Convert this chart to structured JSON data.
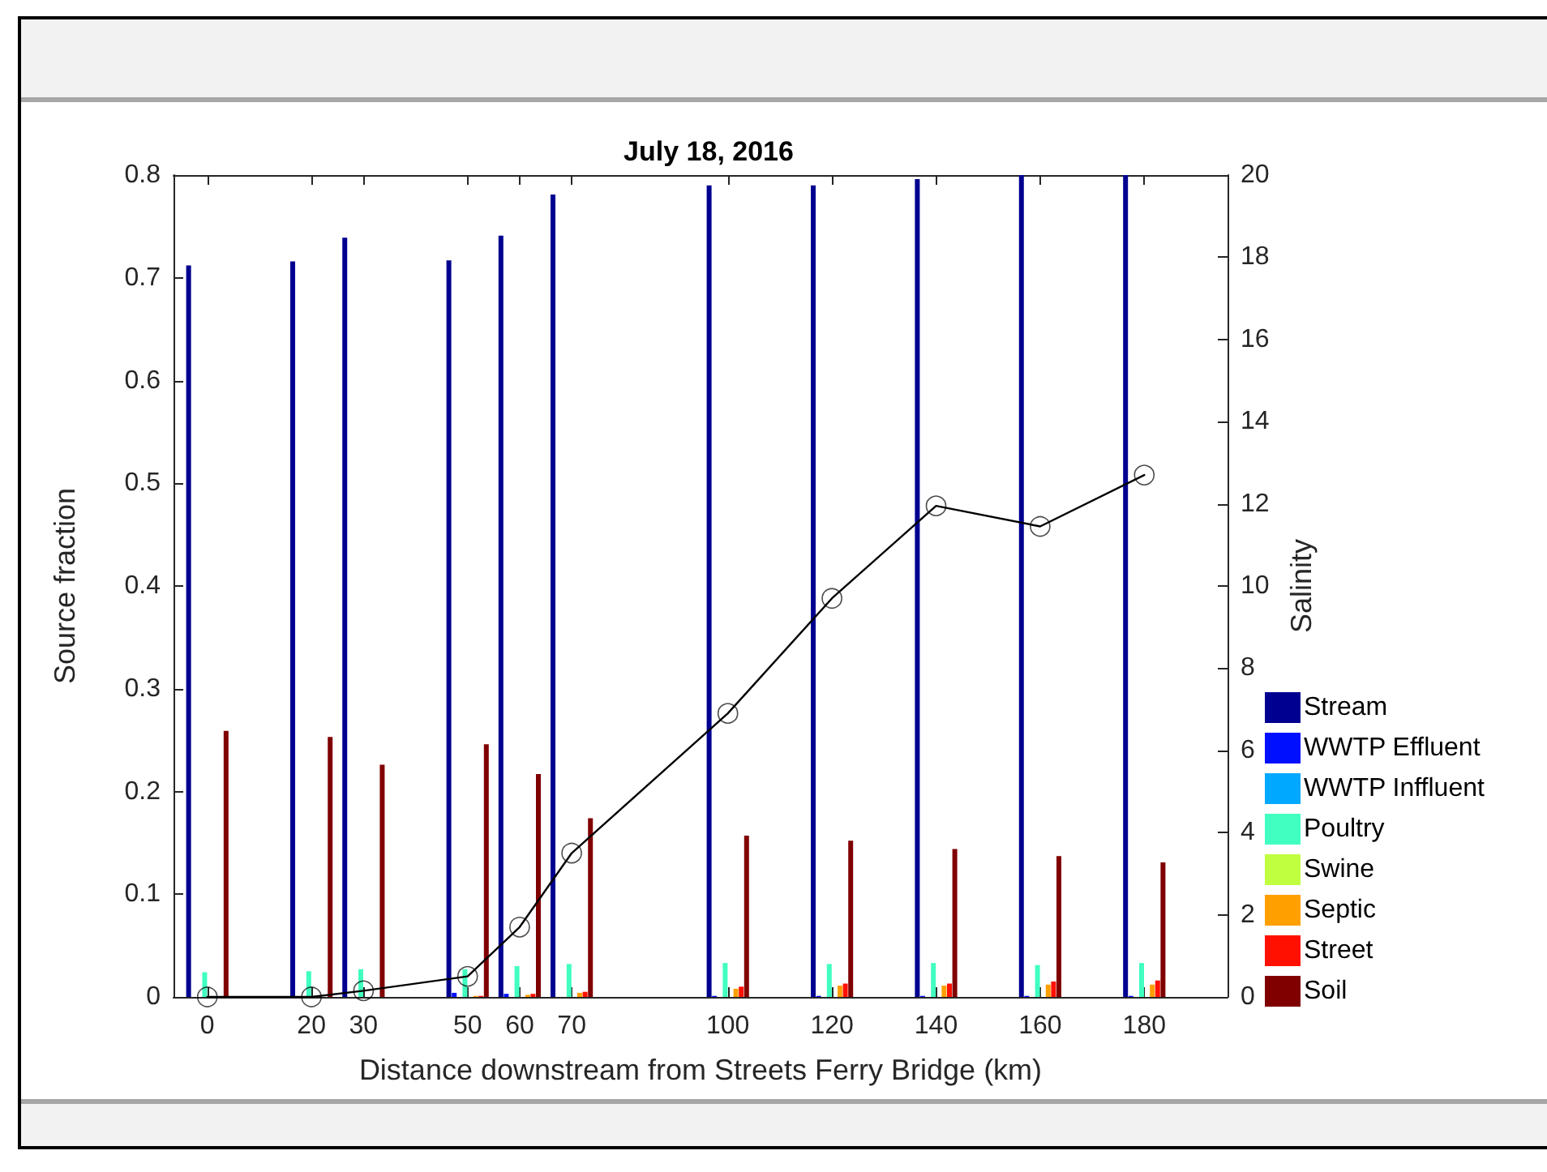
{
  "chart_data": {
    "type": "bar",
    "title": "July 18, 2016",
    "xlabel": "Distance downstream from Streets Ferry Bridge (km)",
    "ylabel": "Source fraction",
    "y2label": "Salinity",
    "x": [
      0,
      20,
      30,
      50,
      60,
      70,
      100,
      120,
      140,
      160,
      180
    ],
    "xlim": [
      -6.5,
      196
    ],
    "xticks": [
      0,
      20,
      30,
      50,
      60,
      70,
      100,
      120,
      140,
      160,
      180
    ],
    "ylim": [
      0,
      0.8
    ],
    "yticks": [
      0,
      0.1,
      0.2,
      0.3,
      0.4,
      0.5,
      0.6,
      0.7,
      0.8
    ],
    "y2lim": [
      0,
      20
    ],
    "y2ticks": [
      0,
      2,
      4,
      6,
      8,
      10,
      12,
      14,
      16,
      18,
      20
    ],
    "legend": "bottom right",
    "series": [
      {
        "name": "Stream",
        "color": "#000090",
        "values": [
          0.712,
          0.716,
          0.739,
          0.717,
          0.741,
          0.781,
          0.79,
          0.79,
          0.796,
          0.8,
          0.8
        ]
      },
      {
        "name": "WWTP Effluent",
        "color": "#0010ff",
        "values": [
          0,
          0,
          0,
          0.004,
          0.003,
          0,
          0.001,
          0.001,
          0.001,
          0.001,
          0.001
        ]
      },
      {
        "name": "WWTP Inffluent",
        "color": "#00a8ff",
        "values": [
          0,
          0,
          0,
          0,
          0,
          0,
          0,
          0,
          0,
          0,
          0
        ]
      },
      {
        "name": "Poultry",
        "color": "#40ffc0",
        "values": [
          0.024,
          0.025,
          0.027,
          0.027,
          0.03,
          0.032,
          0.033,
          0.032,
          0.033,
          0.031,
          0.033
        ]
      },
      {
        "name": "Swine",
        "color": "#c0ff40",
        "values": [
          0,
          0,
          0,
          0,
          0,
          0,
          0,
          0,
          0,
          0,
          0
        ]
      },
      {
        "name": "Septic",
        "color": "#ff9f00",
        "values": [
          0,
          0,
          0,
          0.001,
          0.002,
          0.004,
          0.008,
          0.011,
          0.011,
          0.012,
          0.012
        ]
      },
      {
        "name": "Street",
        "color": "#ff1000",
        "values": [
          0,
          0,
          0,
          0.001,
          0.003,
          0.005,
          0.01,
          0.013,
          0.013,
          0.015,
          0.016
        ]
      },
      {
        "name": "Soil",
        "color": "#800000",
        "values": [
          0.259,
          0.253,
          0.226,
          0.246,
          0.217,
          0.174,
          0.157,
          0.152,
          0.144,
          0.137,
          0.131
        ]
      },
      {
        "type": "line",
        "axis": "y2",
        "color": "#000000",
        "marker": "circle",
        "line_style": "solid",
        "values": [
          0,
          0,
          0.15,
          0.5,
          1.7,
          3.5,
          6.9,
          9.7,
          11.95,
          11.45,
          12.7
        ]
      }
    ]
  }
}
